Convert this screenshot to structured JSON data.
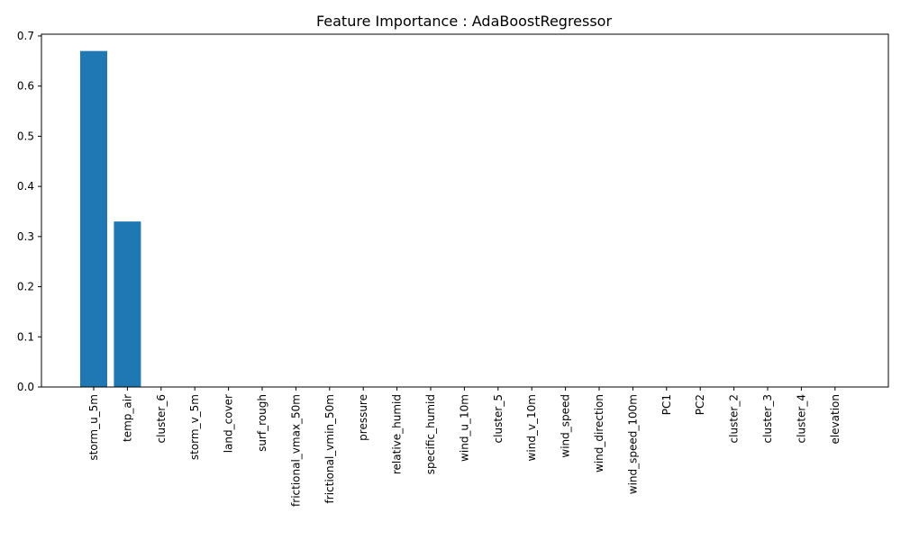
{
  "chart_data": {
    "type": "bar",
    "title": "Feature Importance : AdaBoostRegressor",
    "xlabel": "",
    "ylabel": "",
    "categories": [
      "storm_u_5m",
      "temp_air",
      "cluster_6",
      "storm_v_5m",
      "land_cover",
      "surf_rough",
      "frictional_vmax_50m",
      "frictional_vmin_50m",
      "pressure",
      "relative_humid",
      "specific_humid",
      "wind_u_10m",
      "cluster_5",
      "wind_v_10m",
      "wind_speed",
      "wind_direction",
      "wind_speed_100m",
      "PC1",
      "PC2",
      "cluster_2",
      "cluster_3",
      "cluster_4",
      "elevation"
    ],
    "values": [
      0.67,
      0.33,
      0,
      0,
      0,
      0,
      0,
      0,
      0,
      0,
      0,
      0,
      0,
      0,
      0,
      0,
      0,
      0,
      0,
      0,
      0,
      0,
      0
    ],
    "ylim": [
      0,
      0.7035
    ],
    "yticks": [
      0.0,
      0.1,
      0.2,
      0.3,
      0.4,
      0.5,
      0.6,
      0.7
    ],
    "ytick_labels": [
      "0.0",
      "0.1",
      "0.2",
      "0.3",
      "0.4",
      "0.5",
      "0.6",
      "0.7"
    ],
    "bar_color": "#1f77b4",
    "grid": false,
    "legend": "none"
  }
}
